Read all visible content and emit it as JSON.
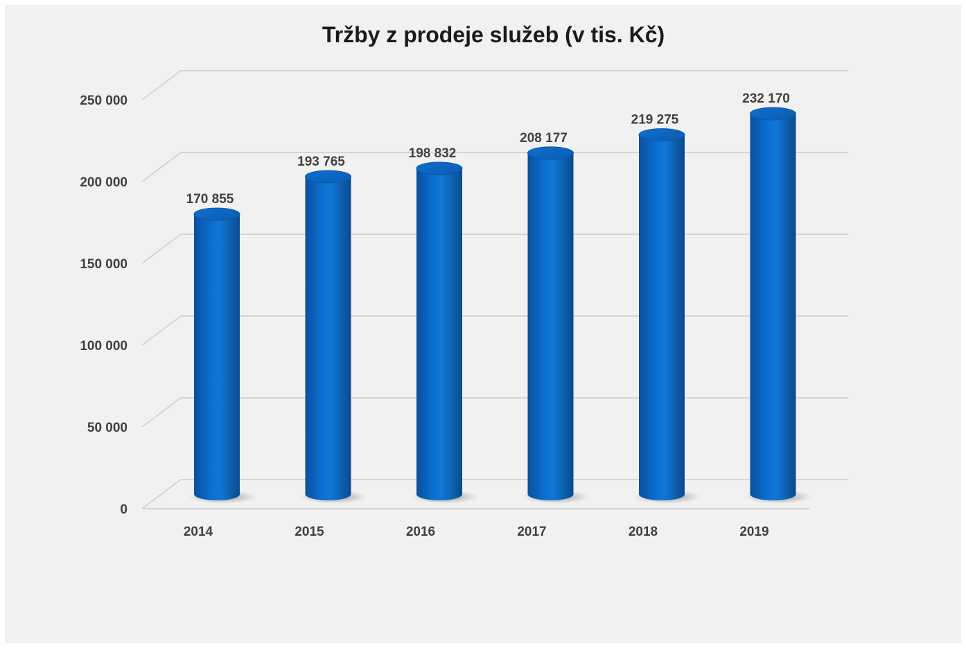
{
  "chart_data": {
    "type": "bar",
    "title": "Tržby z prodeje služeb (v tis. Kč)",
    "categories": [
      "2014",
      "2015",
      "2016",
      "2017",
      "2018",
      "2019"
    ],
    "values": [
      170855,
      193765,
      198832,
      208177,
      219275,
      232170
    ],
    "value_labels": [
      "170 855",
      "193 765",
      "198 832",
      "208 177",
      "219 275",
      "232 170"
    ],
    "y_ticks": [
      "0",
      "50 000",
      "100 000",
      "150 000",
      "200 000",
      "250 000"
    ],
    "ylim": [
      0,
      250000
    ],
    "grid": true,
    "legend": "none",
    "bar_color": "#0a64c0"
  }
}
